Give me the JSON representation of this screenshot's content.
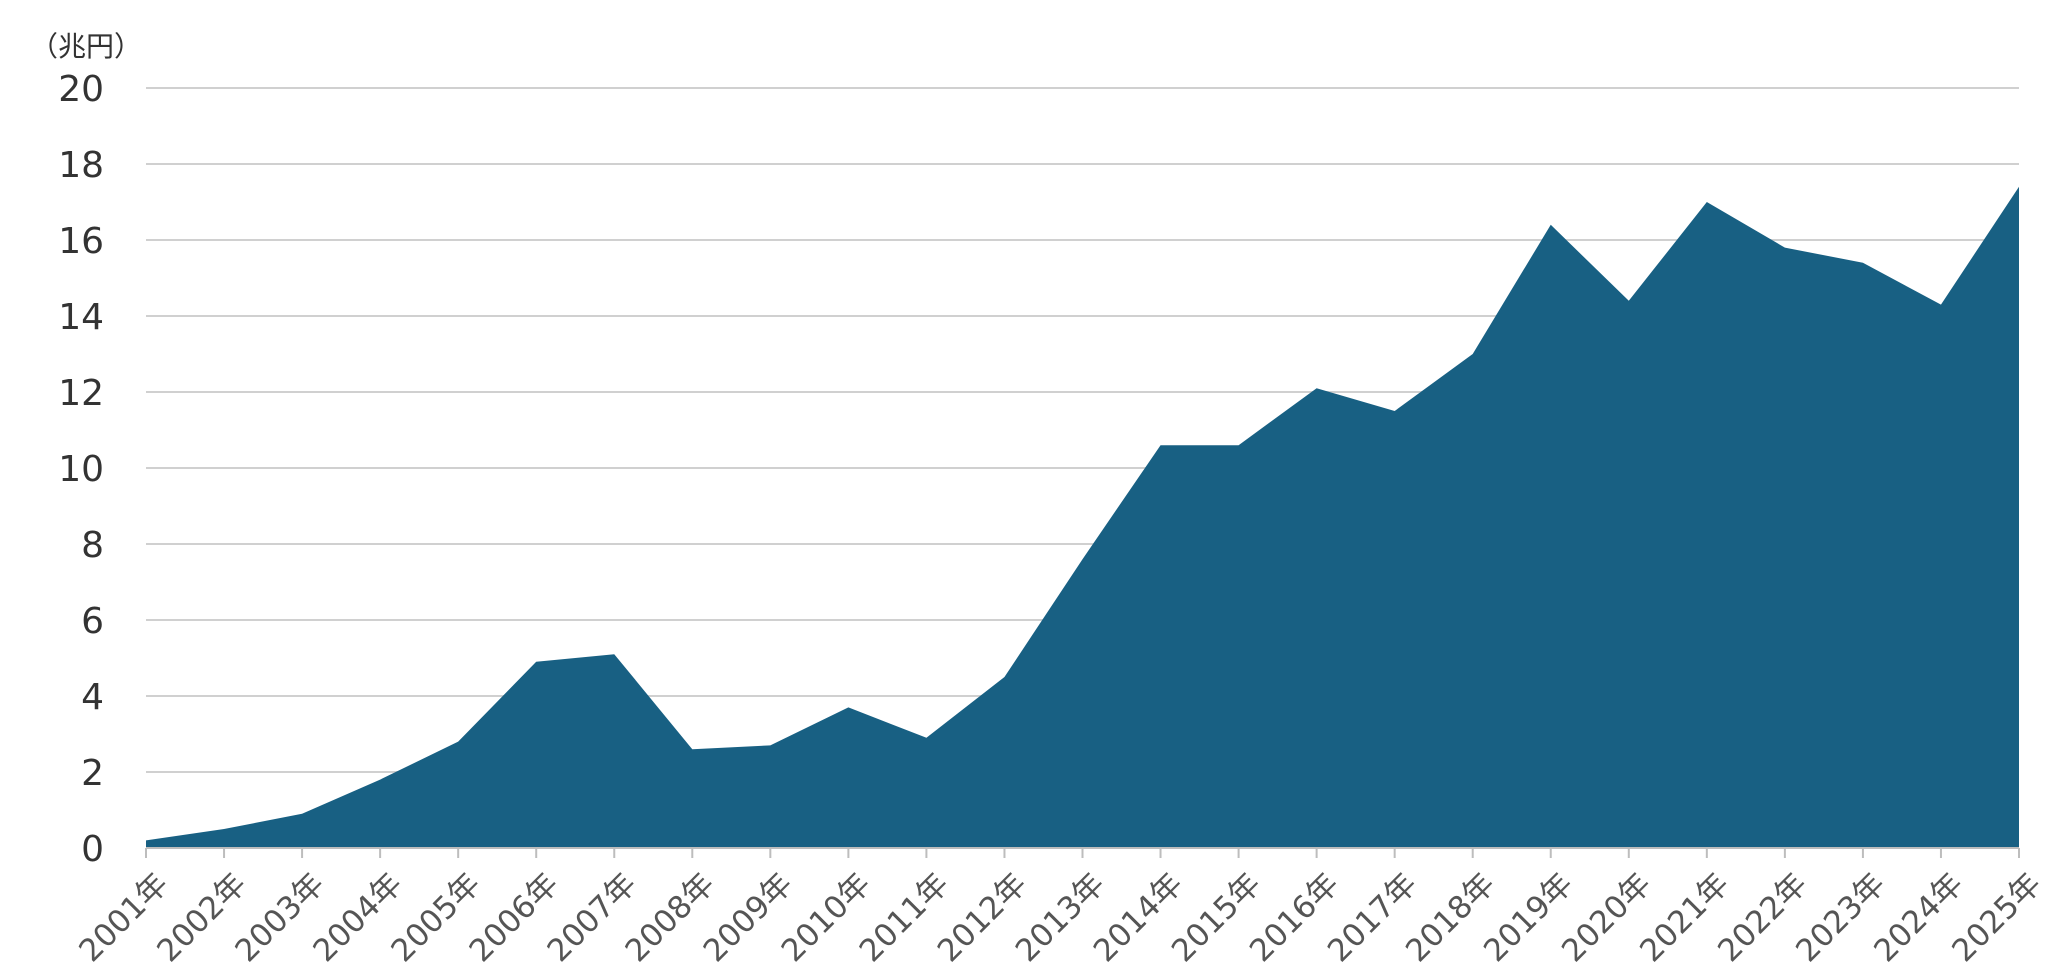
{
  "chart_data": {
    "type": "area",
    "unit_label": "（兆円）",
    "categories": [
      "2001年",
      "2002年",
      "2003年",
      "2004年",
      "2005年",
      "2006年",
      "2007年",
      "2008年",
      "2009年",
      "2010年",
      "2011年",
      "2012年",
      "2013年",
      "2014年",
      "2015年",
      "2016年",
      "2017年",
      "2018年",
      "2019年",
      "2020年",
      "2021年",
      "2022年",
      "2023年",
      "2024年",
      "2025年"
    ],
    "values": [
      0.2,
      0.5,
      0.9,
      1.8,
      2.8,
      4.9,
      5.1,
      2.6,
      2.7,
      3.7,
      2.9,
      4.5,
      7.6,
      10.6,
      10.6,
      12.1,
      11.5,
      13.0,
      16.4,
      14.4,
      17.0,
      15.8,
      15.4,
      14.3,
      17.4
    ],
    "y_ticks": [
      "0",
      "2",
      "4",
      "6",
      "8",
      "10",
      "12",
      "14",
      "16",
      "18",
      "20"
    ],
    "ylim": [
      0,
      20
    ],
    "grid": true,
    "colors": {
      "area": "#186083",
      "grid": "#d0d0d0",
      "axis": "#bdbdbd"
    }
  }
}
